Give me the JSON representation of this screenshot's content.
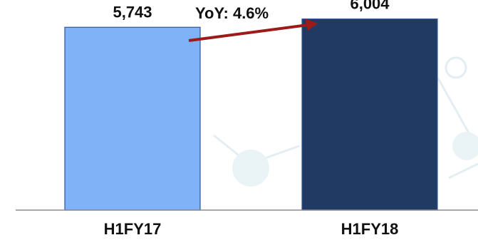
{
  "chart_data": {
    "type": "bar",
    "categories": [
      "H1FY17",
      "H1FY18"
    ],
    "values": [
      5743,
      6004
    ],
    "value_labels": [
      "5,743",
      "6,004"
    ],
    "title": "",
    "xlabel": "",
    "ylabel": "",
    "ylim": [
      0,
      6600
    ],
    "grid": false,
    "legend": "none",
    "bar_colors": [
      "#7fb2f7",
      "#213a63"
    ],
    "annotation": {
      "text": "YoY: 4.6%",
      "arrow_color": "#9b1b1b"
    },
    "axis_color": "#8c8c8c"
  }
}
